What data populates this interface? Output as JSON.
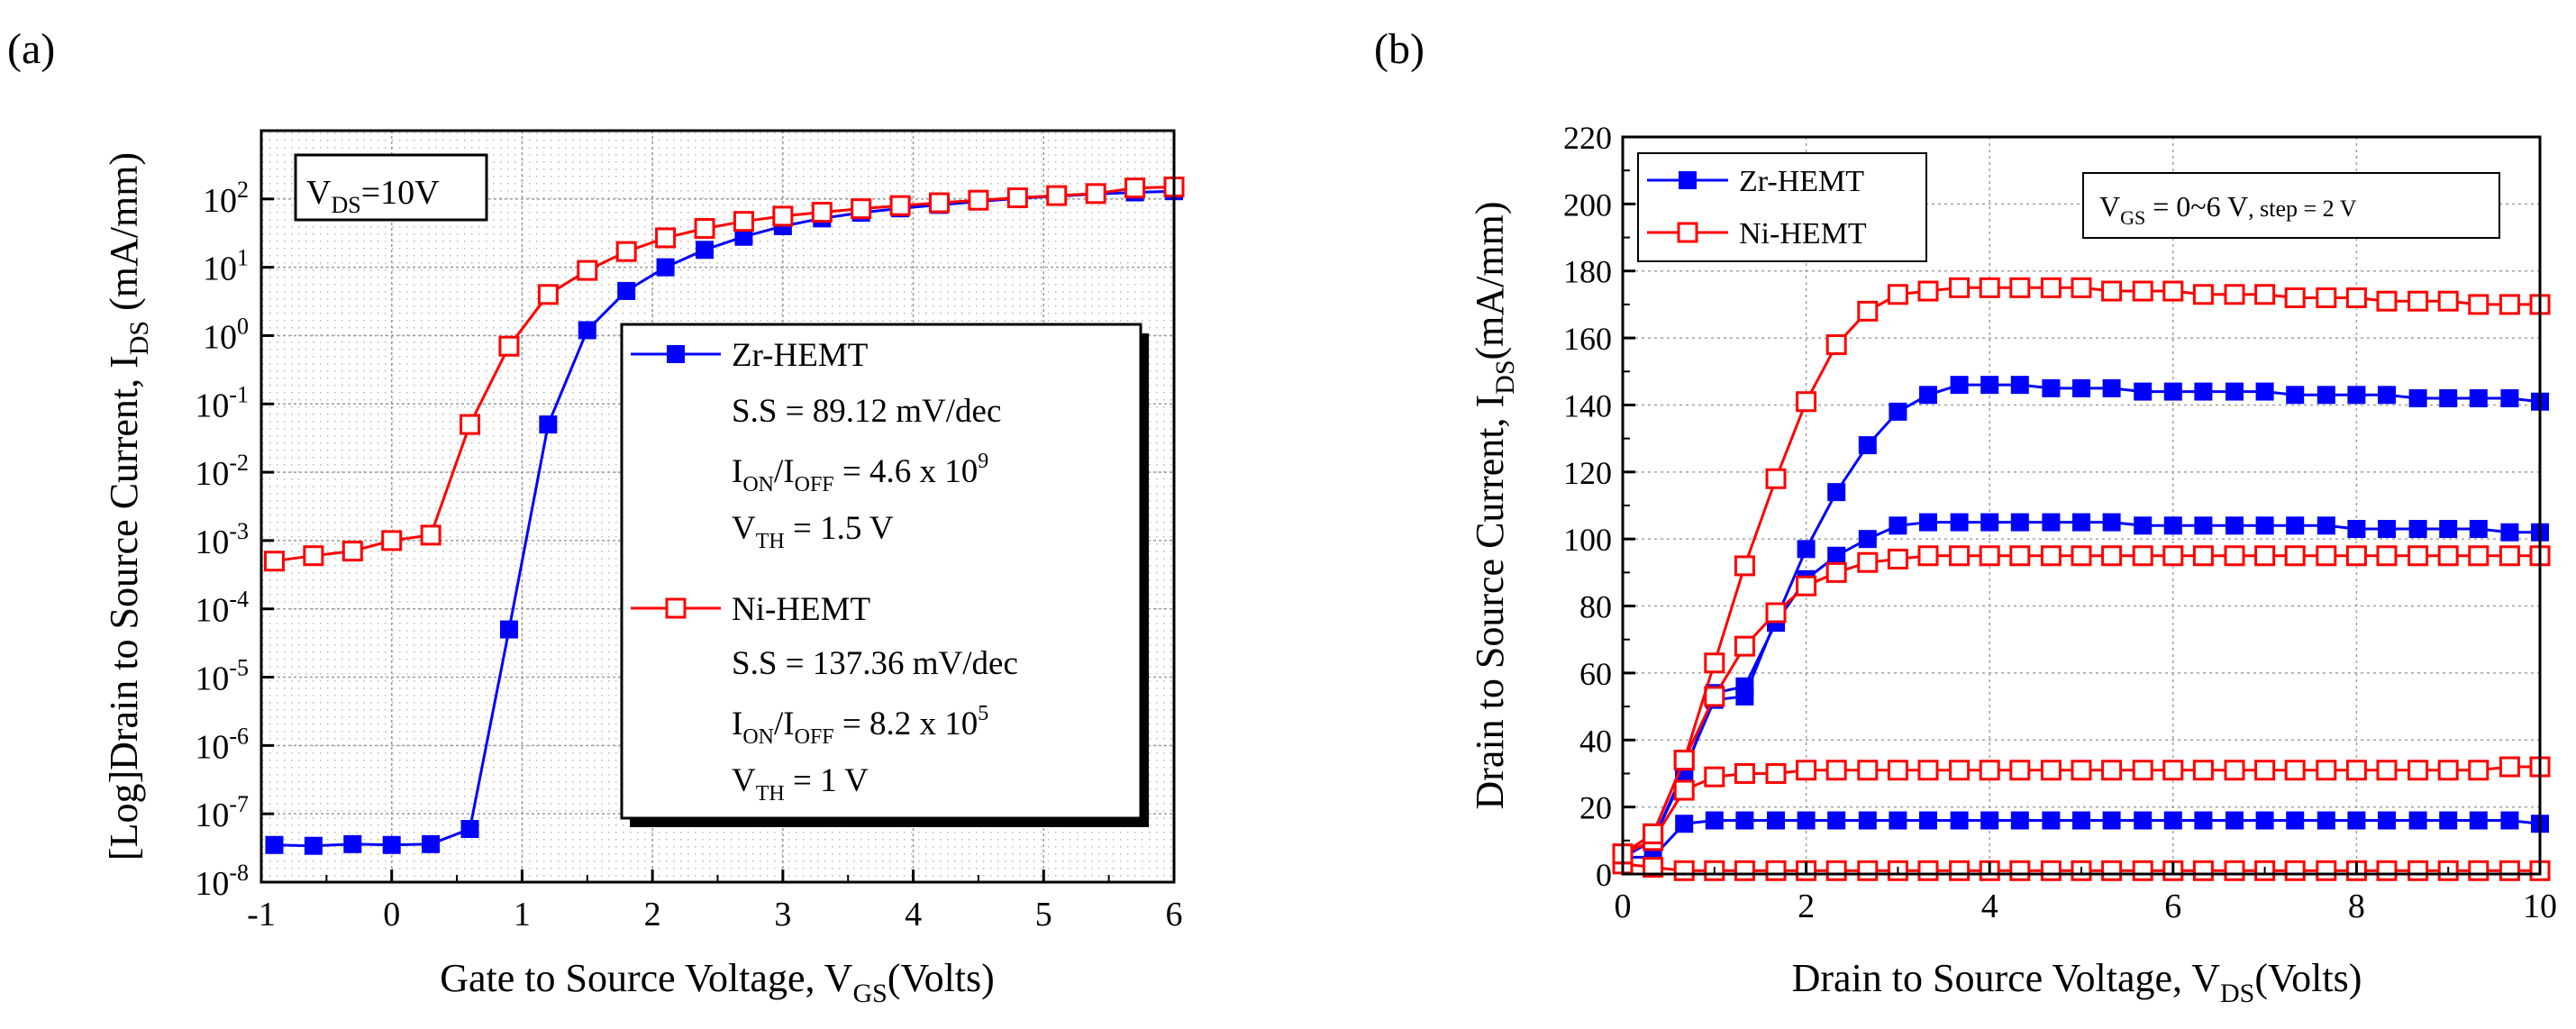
{
  "chart_data": [
    {
      "panel_label": "(a)",
      "type": "line",
      "xlabel": "Gate to Source Voltage, V",
      "xlabel_sub": "GS",
      "xlabel_tail": "(Volts)",
      "ylabel": "[Log]Drain to Source Current, I",
      "ylabel_sub": "DS",
      "ylabel_tail": " (mA/mm)",
      "xlim": [
        -1,
        6
      ],
      "ylim": [
        1e-08,
        1000
      ],
      "yscale": "log",
      "grid": true,
      "x_ticks": [
        "-1",
        "0",
        "1",
        "2",
        "3",
        "4",
        "5",
        "6"
      ],
      "y_tick_exponents": [
        "-8",
        "-7",
        "-6",
        "-5",
        "-4",
        "-3",
        "-2",
        "-1",
        "0",
        "1",
        "2"
      ],
      "y_tick_base": "10",
      "annotation": {
        "main": "V",
        "sub": "DS",
        "tail": "=10V"
      },
      "legend": {
        "placement": "lower-right",
        "zr_name": "Zr-HEMT",
        "zr_ss": "S.S = 89.12 mV/dec",
        "zr_ratio_a": "I",
        "zr_ratio_a_sub": "ON",
        "zr_ratio_b": "/I",
        "zr_ratio_b_sub": "OFF",
        "zr_ratio_c": " = 4.6 x 10",
        "zr_ratio_sup": "9",
        "zr_vth": "V",
        "zr_vth_sub": "TH",
        "zr_vth_tail": " = 1.5 V",
        "ni_name": "Ni-HEMT",
        "ni_ss": "S.S = 137.36 mV/dec",
        "ni_ratio_a": "I",
        "ni_ratio_a_sub": "ON",
        "ni_ratio_b": "/I",
        "ni_ratio_b_sub": "OFF",
        "ni_ratio_c": " = 8.2 x 10",
        "ni_ratio_sup": "5",
        "ni_vth": "V",
        "ni_vth_sub": "TH",
        "ni_vth_tail": " = 1 V"
      },
      "series": [
        {
          "name": "Zr-HEMT",
          "color": "#0000ff",
          "marker": "filled-square",
          "x": [
            -0.9,
            -0.6,
            -0.3,
            0.0,
            0.3,
            0.6,
            0.9,
            1.2,
            1.5,
            1.8,
            2.1,
            2.4,
            2.7,
            3.0,
            3.3,
            3.6,
            3.9,
            4.2,
            4.5,
            4.8,
            5.1,
            5.4,
            5.7,
            6.0
          ],
          "y": [
            3.5e-08,
            3.4e-08,
            3.6e-08,
            3.5e-08,
            3.6e-08,
            6e-08,
            5e-05,
            0.05,
            1.2,
            4.5,
            10,
            18,
            28,
            40,
            52,
            63,
            73,
            82,
            92,
            102,
            110,
            118,
            125,
            130
          ]
        },
        {
          "name": "Ni-HEMT",
          "color": "#ff0000",
          "marker": "open-square",
          "x": [
            -0.9,
            -0.6,
            -0.3,
            0.0,
            0.3,
            0.6,
            0.9,
            1.2,
            1.5,
            1.8,
            2.1,
            2.4,
            2.7,
            3.0,
            3.3,
            3.6,
            3.9,
            4.2,
            4.5,
            4.8,
            5.1,
            5.4,
            5.7,
            6.0
          ],
          "y": [
            0.0005,
            0.0006,
            0.0007,
            0.001,
            0.0012,
            0.05,
            0.7,
            4,
            9,
            17,
            27,
            37,
            47,
            56,
            64,
            72,
            80,
            88,
            96,
            104,
            112,
            120,
            145,
            150
          ]
        }
      ]
    },
    {
      "panel_label": "(b)",
      "type": "line",
      "xlabel": "Drain to Source Voltage, V",
      "xlabel_sub": "DS",
      "xlabel_tail": "(Volts)",
      "ylabel": "Drain to Source Current, I",
      "ylabel_sub": "DS",
      "ylabel_tail": "(mA/mm)",
      "xlim": [
        0,
        10
      ],
      "ylim": [
        0,
        220
      ],
      "grid": true,
      "x_ticks": [
        "0",
        "2",
        "4",
        "6",
        "8",
        "10"
      ],
      "y_ticks": [
        "0",
        "20",
        "40",
        "60",
        "80",
        "100",
        "120",
        "140",
        "160",
        "180",
        "200",
        "220"
      ],
      "annotation": {
        "main": "V",
        "sub": "GS",
        "tail": " = 0~6 V",
        "tail_small": ", step = 2 V"
      },
      "legend": {
        "placement": "top-left",
        "entries": [
          "Zr-HEMT",
          "Ni-HEMT"
        ]
      },
      "x": [
        0,
        0.33,
        0.67,
        1,
        1.33,
        1.67,
        2,
        2.33,
        2.67,
        3,
        3.33,
        3.67,
        4,
        4.33,
        4.67,
        5,
        5.33,
        5.67,
        6,
        6.33,
        6.67,
        7,
        7.33,
        7.67,
        8,
        8.33,
        8.67,
        9,
        9.33,
        9.67,
        10
      ],
      "series": [
        {
          "name": "Zr-HEMT",
          "color": "#0000ff",
          "marker": "filled-square",
          "y": [
            5,
            5,
            15,
            16,
            16,
            16,
            16,
            16,
            16,
            16,
            16,
            16,
            16,
            16,
            16,
            16,
            16,
            16,
            16,
            16,
            16,
            16,
            16,
            16,
            16,
            16,
            16,
            16,
            16,
            16,
            15
          ]
        },
        {
          "name": "",
          "color": "#0000ff",
          "marker": "filled-square",
          "y": [
            5,
            10,
            30,
            54,
            56,
            75,
            88,
            95,
            100,
            104,
            105,
            105,
            105,
            105,
            105,
            105,
            105,
            104,
            104,
            104,
            104,
            104,
            104,
            104,
            103,
            103,
            103,
            103,
            103,
            102,
            102
          ]
        },
        {
          "name": "",
          "color": "#0000ff",
          "marker": "filled-square",
          "y": [
            5,
            10,
            31,
            52,
            53,
            76,
            97,
            114,
            128,
            138,
            143,
            146,
            146,
            146,
            145,
            145,
            145,
            144,
            144,
            144,
            144,
            144,
            143,
            143,
            143,
            143,
            142,
            142,
            142,
            142,
            141
          ]
        },
        {
          "name": "Ni-HEMT",
          "color": "#ff0000",
          "marker": "open-square",
          "y": [
            3,
            2,
            1,
            1,
            1,
            1,
            1,
            1,
            1,
            1,
            1,
            1,
            1,
            1,
            1,
            1,
            1,
            1,
            1,
            1,
            1,
            1,
            1,
            1,
            1,
            1,
            1,
            1,
            1,
            1,
            1
          ]
        },
        {
          "name": "",
          "color": "#ff0000",
          "marker": "open-square",
          "y": [
            6,
            10,
            25,
            29,
            30,
            30,
            31,
            31,
            31,
            31,
            31,
            31,
            31,
            31,
            31,
            31,
            31,
            31,
            31,
            31,
            31,
            31,
            31,
            31,
            31,
            31,
            31,
            31,
            31,
            32,
            32
          ]
        },
        {
          "name": "",
          "color": "#ff0000",
          "marker": "open-square",
          "y": [
            6,
            12,
            34,
            53,
            68,
            78,
            86,
            90,
            93,
            94,
            95,
            95,
            95,
            95,
            95,
            95,
            95,
            95,
            95,
            95,
            95,
            95,
            95,
            95,
            95,
            95,
            95,
            95,
            95,
            95,
            95
          ]
        },
        {
          "name": "",
          "color": "#ff0000",
          "marker": "open-square",
          "y": [
            6,
            12,
            34,
            63,
            92,
            118,
            141,
            158,
            168,
            173,
            174,
            175,
            175,
            175,
            175,
            175,
            174,
            174,
            174,
            173,
            173,
            173,
            172,
            172,
            172,
            171,
            171,
            171,
            170,
            170,
            170
          ]
        }
      ]
    }
  ]
}
